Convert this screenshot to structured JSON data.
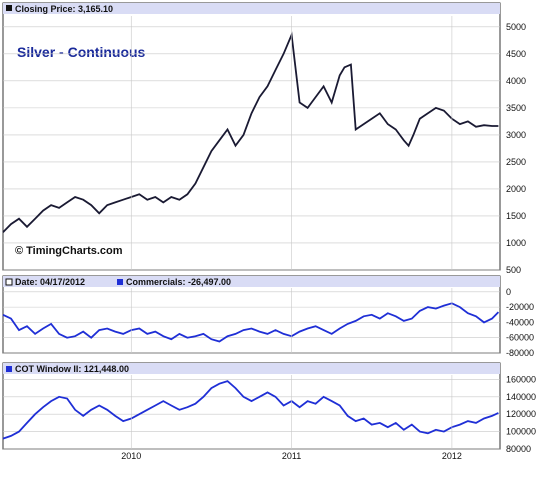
{
  "colors": {
    "price_line": "#1a1a33",
    "commercials_line": "#1f2fd6",
    "cot_line": "#1f2fd6",
    "header_band": "#d9dcf5",
    "grid": "#c8c8c8",
    "title": "#1a2a9a"
  },
  "chart_data": [
    {
      "type": "line",
      "title": "Silver - Continuous",
      "header": "Closing Price: 3,165.10",
      "watermark": "© TimingCharts.com",
      "ylim": [
        500,
        5200
      ],
      "yticks": [
        "5000",
        "4500",
        "4000",
        "3500",
        "3000",
        "2500",
        "2000",
        "1500",
        "1000",
        "500"
      ],
      "grid": true,
      "series": [
        {
          "name": "Closing Price",
          "x": [
            2009.2,
            2009.25,
            2009.3,
            2009.35,
            2009.4,
            2009.45,
            2009.5,
            2009.55,
            2009.6,
            2009.65,
            2009.7,
            2009.75,
            2009.8,
            2009.85,
            2009.9,
            2009.95,
            2010.0,
            2010.05,
            2010.1,
            2010.15,
            2010.2,
            2010.25,
            2010.3,
            2010.35,
            2010.4,
            2010.45,
            2010.5,
            2010.55,
            2010.6,
            2010.65,
            2010.7,
            2010.75,
            2010.8,
            2010.85,
            2010.9,
            2010.95,
            2011.0,
            2011.05,
            2011.1,
            2011.15,
            2011.2,
            2011.25,
            2011.3,
            2011.33,
            2011.37,
            2011.4,
            2011.45,
            2011.5,
            2011.55,
            2011.6,
            2011.65,
            2011.7,
            2011.73,
            2011.76,
            2011.8,
            2011.85,
            2011.9,
            2011.95,
            2012.0,
            2012.05,
            2012.1,
            2012.15,
            2012.2,
            2012.25,
            2012.29
          ],
          "y": [
            1200,
            1350,
            1450,
            1300,
            1450,
            1600,
            1700,
            1650,
            1750,
            1850,
            1800,
            1700,
            1550,
            1700,
            1750,
            1800,
            1850,
            1900,
            1800,
            1850,
            1750,
            1850,
            1800,
            1900,
            2100,
            2400,
            2700,
            2900,
            3100,
            2800,
            3000,
            3400,
            3700,
            3900,
            4200,
            4500,
            4850,
            3600,
            3500,
            3700,
            3900,
            3600,
            4100,
            4250,
            4300,
            3100,
            3200,
            3300,
            3400,
            3200,
            3100,
            2900,
            2800,
            3000,
            3300,
            3400,
            3500,
            3450,
            3300,
            3200,
            3250,
            3150,
            3180,
            3165,
            3165
          ]
        }
      ]
    },
    {
      "type": "line",
      "header_left": "Date: 04/17/2012",
      "header_right": "Commercials: -26,497.00",
      "ylim": [
        -80000,
        5000
      ],
      "yticks": [
        "0",
        "-20000",
        "-40000",
        "-60000",
        "-80000"
      ],
      "grid": true,
      "series": [
        {
          "name": "Commercials",
          "x": [
            2009.2,
            2009.25,
            2009.3,
            2009.35,
            2009.4,
            2009.45,
            2009.5,
            2009.55,
            2009.6,
            2009.65,
            2009.7,
            2009.75,
            2009.8,
            2009.85,
            2009.9,
            2009.95,
            2010.0,
            2010.05,
            2010.1,
            2010.15,
            2010.2,
            2010.25,
            2010.3,
            2010.35,
            2010.4,
            2010.45,
            2010.5,
            2010.55,
            2010.6,
            2010.65,
            2010.7,
            2010.75,
            2010.8,
            2010.85,
            2010.9,
            2010.95,
            2011.0,
            2011.05,
            2011.1,
            2011.15,
            2011.2,
            2011.25,
            2011.3,
            2011.35,
            2011.4,
            2011.45,
            2011.5,
            2011.55,
            2011.6,
            2011.65,
            2011.7,
            2011.75,
            2011.8,
            2011.85,
            2011.9,
            2011.95,
            2012.0,
            2012.05,
            2012.1,
            2012.15,
            2012.2,
            2012.25,
            2012.29
          ],
          "y": [
            -30000,
            -35000,
            -50000,
            -45000,
            -55000,
            -48000,
            -42000,
            -55000,
            -60000,
            -58000,
            -52000,
            -60000,
            -50000,
            -48000,
            -52000,
            -55000,
            -50000,
            -48000,
            -55000,
            -52000,
            -58000,
            -62000,
            -55000,
            -60000,
            -58000,
            -55000,
            -62000,
            -65000,
            -58000,
            -55000,
            -50000,
            -48000,
            -52000,
            -55000,
            -50000,
            -55000,
            -58000,
            -52000,
            -48000,
            -45000,
            -50000,
            -55000,
            -48000,
            -42000,
            -38000,
            -32000,
            -30000,
            -35000,
            -28000,
            -32000,
            -38000,
            -35000,
            -25000,
            -20000,
            -22000,
            -18000,
            -15000,
            -20000,
            -28000,
            -32000,
            -40000,
            -35000,
            -26497
          ]
        }
      ]
    },
    {
      "type": "line",
      "header": "COT Window II: 121,448.00",
      "ylim": [
        80000,
        165000
      ],
      "yticks": [
        "160000",
        "140000",
        "120000",
        "100000",
        "80000"
      ],
      "xticks": [
        "2010",
        "2011",
        "2012"
      ],
      "grid": true,
      "series": [
        {
          "name": "COT Window II",
          "x": [
            2009.2,
            2009.25,
            2009.3,
            2009.35,
            2009.4,
            2009.45,
            2009.5,
            2009.55,
            2009.6,
            2009.65,
            2009.7,
            2009.75,
            2009.8,
            2009.85,
            2009.9,
            2009.95,
            2010.0,
            2010.05,
            2010.1,
            2010.15,
            2010.2,
            2010.25,
            2010.3,
            2010.35,
            2010.4,
            2010.45,
            2010.5,
            2010.55,
            2010.6,
            2010.65,
            2010.7,
            2010.75,
            2010.8,
            2010.85,
            2010.9,
            2010.95,
            2011.0,
            2011.05,
            2011.1,
            2011.15,
            2011.2,
            2011.25,
            2011.3,
            2011.35,
            2011.4,
            2011.45,
            2011.5,
            2011.55,
            2011.6,
            2011.65,
            2011.7,
            2011.75,
            2011.8,
            2011.85,
            2011.9,
            2011.95,
            2012.0,
            2012.05,
            2012.1,
            2012.15,
            2012.2,
            2012.25,
            2012.29
          ],
          "y": [
            92000,
            95000,
            100000,
            110000,
            120000,
            128000,
            135000,
            140000,
            138000,
            125000,
            118000,
            125000,
            130000,
            125000,
            118000,
            112000,
            115000,
            120000,
            125000,
            130000,
            135000,
            130000,
            125000,
            128000,
            132000,
            140000,
            150000,
            155000,
            158000,
            150000,
            140000,
            135000,
            140000,
            145000,
            140000,
            130000,
            135000,
            128000,
            135000,
            132000,
            140000,
            135000,
            130000,
            118000,
            112000,
            115000,
            108000,
            110000,
            105000,
            110000,
            102000,
            108000,
            100000,
            98000,
            102000,
            100000,
            105000,
            108000,
            112000,
            110000,
            115000,
            118000,
            121448
          ]
        }
      ]
    }
  ]
}
